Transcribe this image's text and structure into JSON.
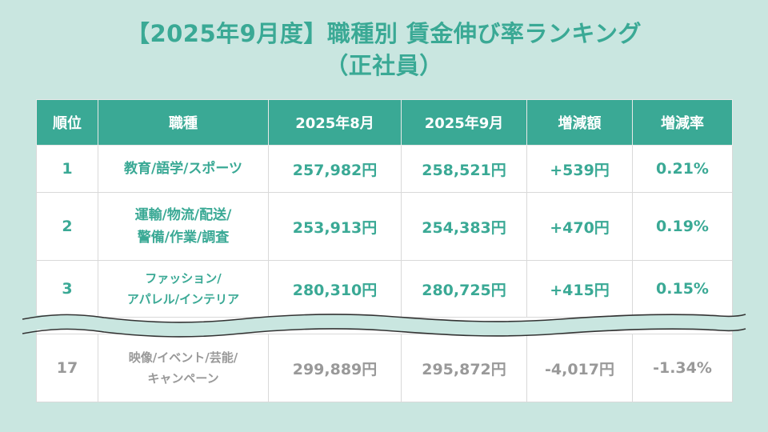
{
  "title": {
    "line1": "【2025年9月度】職種別 賃金伸び率ランキング",
    "line2": "（正社員）"
  },
  "table": {
    "headers": [
      "順位",
      "職種",
      "2025年8月",
      "2025年9月",
      "増減額",
      "増減率"
    ],
    "rows": [
      {
        "rank": "1",
        "job_line1": "教育/語学/スポーツ",
        "job_line2": "",
        "aug": "257,982円",
        "sep": "258,521円",
        "diff": "+539円",
        "rate": "0.21%"
      },
      {
        "rank": "2",
        "job_line1": "運輸/物流/配送/",
        "job_line2": "警備/作業/調査",
        "aug": "253,913円",
        "sep": "254,383円",
        "diff": "+470円",
        "rate": "0.19%"
      },
      {
        "rank": "3",
        "job_line1": "ファッション/",
        "job_line2": "アパレル/インテリア",
        "aug": "280,310円",
        "sep": "280,725円",
        "diff": "+415円",
        "rate": "0.15%"
      },
      {
        "rank": "17",
        "job_line1": "映像/イベント/芸能/",
        "job_line2": "キャンペーン",
        "aug": "299,889円",
        "sep": "295,872円",
        "diff": "-4,017円",
        "rate": "-1.34%"
      }
    ]
  },
  "colors": {
    "accent": "#3aa995",
    "background": "#c9e6e0",
    "muted_text": "#999999"
  }
}
